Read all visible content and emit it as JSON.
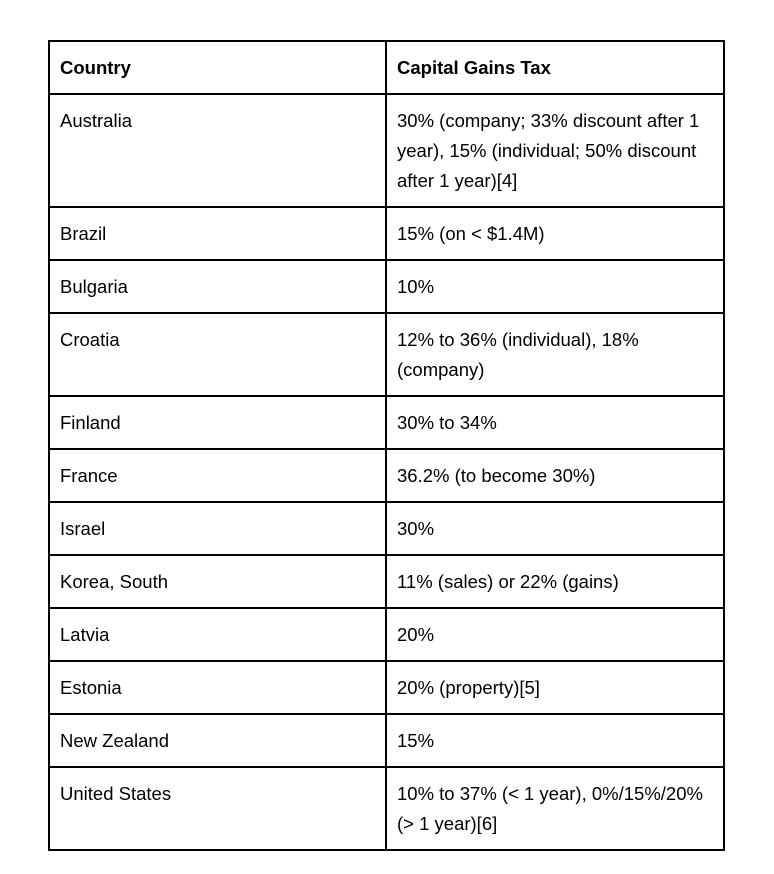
{
  "table": {
    "headers": [
      "Country",
      "Capital Gains Tax"
    ],
    "rows": [
      [
        "Australia",
        "30% (company; 33% discount after 1 year), 15% (individual; 50% discount after 1 year)[4]"
      ],
      [
        "Brazil",
        "15% (on < $1.4M)"
      ],
      [
        "Bulgaria",
        "10%"
      ],
      [
        "Croatia",
        "12% to 36% (individual), 18% (company)"
      ],
      [
        "Finland",
        "30% to 34%"
      ],
      [
        "France",
        "36.2% (to become 30%)"
      ],
      [
        "Israel",
        "30%"
      ],
      [
        "Korea, South",
        "11% (sales) or 22% (gains)"
      ],
      [
        "Latvia",
        "20%"
      ],
      [
        "Estonia",
        "20% (property)[5]"
      ],
      [
        "New Zealand",
        "15%"
      ],
      [
        "United States",
        "10% to 37% (< 1 year), 0%/15%/20% (> 1 year)[6]"
      ]
    ]
  }
}
